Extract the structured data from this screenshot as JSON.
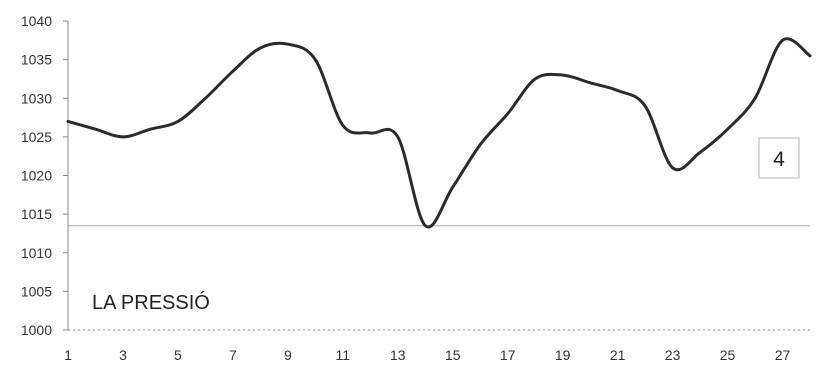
{
  "chart_data": {
    "type": "line",
    "title": "LA PRESSIÓ",
    "xlabel": "",
    "ylabel": "",
    "badge": "4",
    "xlim": [
      1,
      28
    ],
    "ylim": [
      1000,
      1040
    ],
    "x_ticks": [
      1,
      3,
      5,
      7,
      9,
      11,
      13,
      15,
      17,
      19,
      21,
      23,
      25,
      27
    ],
    "y_ticks": [
      1000,
      1005,
      1010,
      1015,
      1020,
      1025,
      1030,
      1035,
      1040
    ],
    "reference_line": 1013.5,
    "grid": false,
    "series": [
      {
        "x": [
          1,
          2,
          3,
          4,
          5,
          6,
          7,
          8,
          9,
          10,
          11,
          12,
          13,
          14,
          15,
          16,
          17,
          18,
          19,
          20,
          21,
          22,
          23,
          24,
          25,
          26,
          27,
          28
        ],
        "values": [
          1027,
          1026,
          1025,
          1026,
          1027,
          1030,
          1033.5,
          1036.5,
          1037,
          1035,
          1026.5,
          1025.5,
          1025,
          1013.5,
          1018.5,
          1024,
          1028,
          1032.5,
          1033,
          1032,
          1031,
          1029,
          1021,
          1023,
          1026,
          1030,
          1037.5,
          1035.5
        ]
      }
    ],
    "colors": {
      "line": "#2b2b2b",
      "axis": "#888888",
      "reference": "#aaaaaa"
    }
  }
}
